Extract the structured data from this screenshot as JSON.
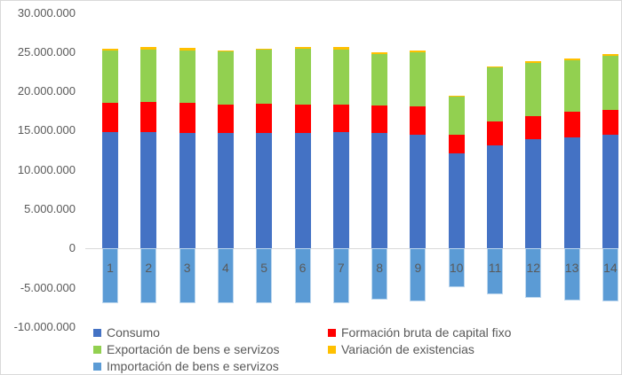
{
  "colors": {
    "background": "#FFFFFF",
    "border": "#D9D9D9",
    "axis_line": "#D9D9D9",
    "axis_text": "#595959",
    "category_text": "#595959"
  },
  "chart_data": {
    "type": "bar",
    "stacked": true,
    "title": "",
    "xlabel": "",
    "ylabel": "",
    "grid": false,
    "legend_position": "bottom",
    "ylim": [
      -10000000,
      30000000
    ],
    "y_tick_step": 5000000,
    "y_ticks": [
      {
        "label": "30.000.000",
        "value": 30000000
      },
      {
        "label": "25.000.000",
        "value": 25000000
      },
      {
        "label": "20.000.000",
        "value": 20000000
      },
      {
        "label": "15.000.000",
        "value": 15000000
      },
      {
        "label": "10.000.000",
        "value": 10000000
      },
      {
        "label": "5.000.000",
        "value": 5000000
      },
      {
        "label": "0",
        "value": 0
      },
      {
        "label": "-5.000.000",
        "value": -5000000
      },
      {
        "label": "-10.000.000",
        "value": -10000000
      }
    ],
    "categories": [
      "1",
      "2",
      "3",
      "4",
      "5",
      "6",
      "7",
      "8",
      "9",
      "10",
      "11",
      "12",
      "13",
      "14"
    ],
    "series": [
      {
        "name": "Consumo",
        "color": "#4472C4",
        "values": [
          14800000,
          14800000,
          14750000,
          14700000,
          14700000,
          14750000,
          14800000,
          14700000,
          14450000,
          12100000,
          13150000,
          13900000,
          14150000,
          14450000
        ]
      },
      {
        "name": "Formación bruta de capital fixo",
        "color": "#FF0000",
        "values": [
          3700000,
          3850000,
          3800000,
          3600000,
          3700000,
          3550000,
          3500000,
          3500000,
          3650000,
          2350000,
          3000000,
          3000000,
          3250000,
          3200000
        ]
      },
      {
        "name": "Exportación de bens e servizos",
        "color": "#92D050",
        "values": [
          6700000,
          6700000,
          6700000,
          6750000,
          6900000,
          7100000,
          7050000,
          6500000,
          6900000,
          4950000,
          6900000,
          6700000,
          6600000,
          6900000
        ]
      },
      {
        "name": "Variación de existencias",
        "color": "#FFC000",
        "values": [
          200000,
          250000,
          250000,
          200000,
          150000,
          200000,
          250000,
          250000,
          150000,
          100000,
          150000,
          250000,
          200000,
          150000
        ]
      },
      {
        "name": "Importación de bens e servizos",
        "color": "#5B9BD5",
        "values": [
          -7000000,
          -7000000,
          -7000000,
          -6950000,
          -6950000,
          -6900000,
          -6950000,
          -6550000,
          -6700000,
          -4900000,
          -5800000,
          -6300000,
          -6600000,
          -6750000
        ]
      }
    ]
  }
}
